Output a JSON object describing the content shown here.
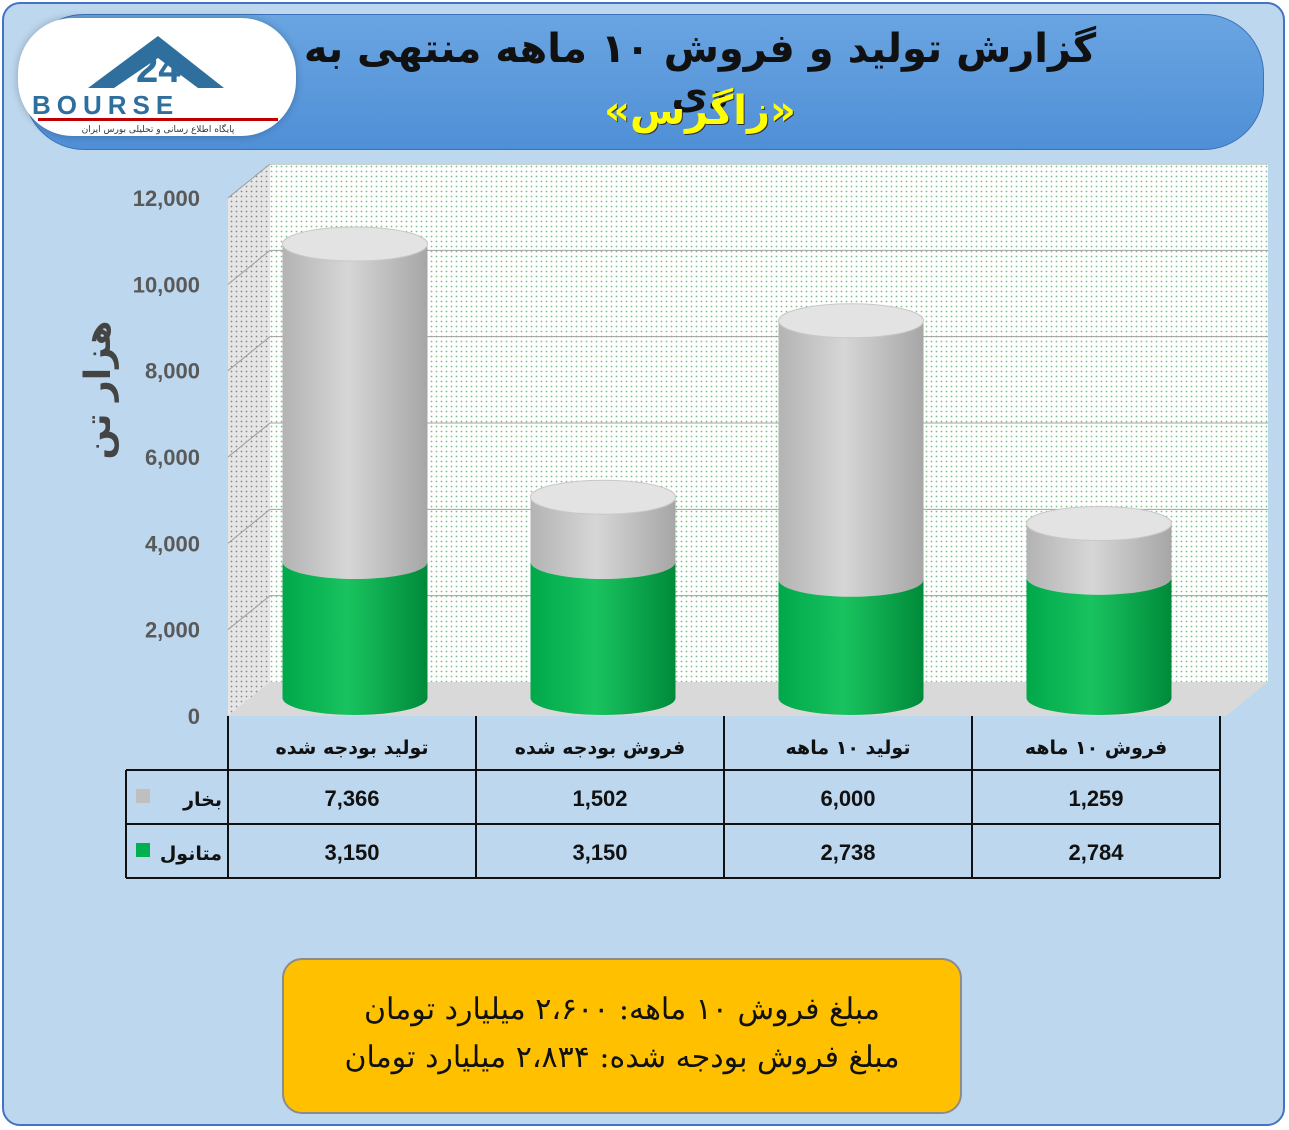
{
  "header": {
    "title": "گزارش تولید و فروش ۱۰ ماهه منتهی به دی",
    "subtitle": "«زاگرس»"
  },
  "logo": {
    "brand": "24BOURSE",
    "tagline": "پایگاه اطلاع رسانی و تحلیلی بورس ایران",
    "colors": {
      "primary": "#2e6f9e",
      "stripe": "#c00000"
    }
  },
  "chart_data": {
    "type": "bar",
    "stacked": true,
    "style": "3d-cylinder",
    "categories": [
      "تولید بودجه شده",
      "فروش بودجه شده",
      "تولید ۱۰ ماهه",
      "فروش ۱۰ ماهه"
    ],
    "series": [
      {
        "name": "متانول",
        "color": "#00b050",
        "values": [
          3150,
          3150,
          2738,
          2784
        ],
        "labels": [
          "3,150",
          "3,150",
          "2,738",
          "2,784"
        ]
      },
      {
        "name": "بخار",
        "color": "#bfbfbf",
        "values": [
          7366,
          1502,
          6000,
          1259
        ],
        "labels": [
          "7,366",
          "1,502",
          "6,000",
          "1,259"
        ]
      }
    ],
    "ylabel": "هزار تن",
    "ylim": [
      0,
      12000
    ],
    "yticks": [
      0,
      2000,
      4000,
      6000,
      8000,
      10000,
      12000
    ],
    "ytick_labels": [
      "0",
      "2,000",
      "4,000",
      "6,000",
      "8,000",
      "10,000",
      "12,000"
    ],
    "data_table": true,
    "grid": true
  },
  "summary": {
    "line1": "مبلغ فروش ۱۰ ماهه: ۲،۶۰۰ میلیارد تومان",
    "line2": "مبلغ فروش بودجه شده: ۲،۸۳۴ میلیارد تومان"
  }
}
